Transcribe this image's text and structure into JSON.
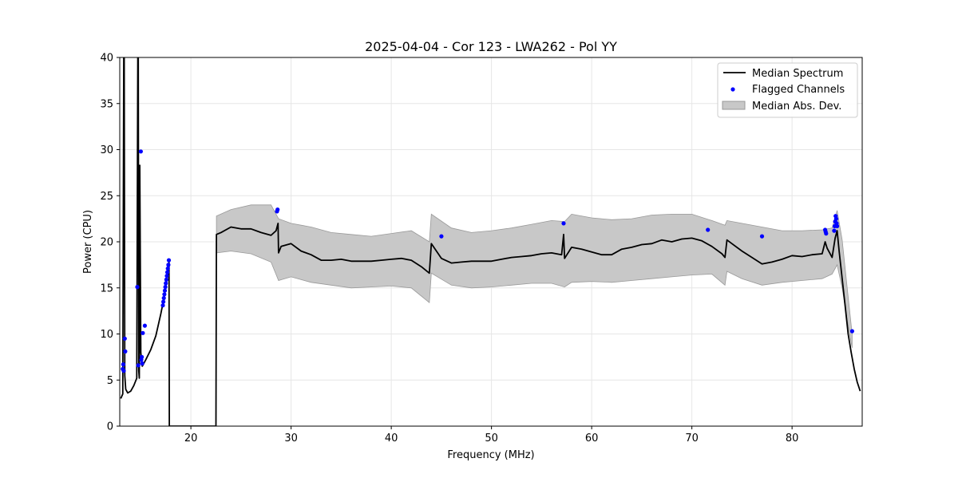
{
  "chart_data": {
    "type": "line",
    "title": "2025-04-04 - Cor 123 - LWA262 - Pol YY",
    "xlabel": "Frequency (MHz)",
    "ylabel": "Power (CPU)",
    "xlim": [
      12.9,
      87.0
    ],
    "ylim": [
      0,
      40
    ],
    "xticks": [
      20,
      30,
      40,
      50,
      60,
      70,
      80
    ],
    "yticks": [
      0,
      5,
      10,
      15,
      20,
      25,
      30,
      35,
      40
    ],
    "grid": true,
    "legend_position": "top-right",
    "colors": {
      "median": "#000000",
      "flagged": "#0000ff",
      "mad_fill": "#c8c8c8",
      "mad_edge": "#999999"
    },
    "series": [
      {
        "name": "Median Spectrum",
        "kind": "line",
        "x": [
          13.0,
          13.2,
          13.3,
          13.35,
          13.4,
          13.5,
          13.7,
          14.0,
          14.3,
          14.6,
          14.7,
          14.75,
          14.8,
          14.85,
          14.9,
          15.0,
          15.1,
          15.15,
          15.2,
          15.3,
          15.5,
          16.0,
          16.5,
          17.0,
          17.3,
          17.5,
          17.7,
          17.82,
          17.85,
          18.0,
          20.0,
          22.5,
          22.55,
          23.0,
          24.0,
          25.0,
          26.0,
          27.0,
          28.0,
          28.5,
          28.7,
          28.75,
          29.0,
          30.0,
          31.0,
          32.0,
          33.0,
          34.0,
          35.0,
          36.0,
          37.0,
          38.0,
          39.0,
          40.0,
          41.0,
          42.0,
          43.0,
          43.8,
          44.0,
          45.0,
          46.0,
          47.0,
          48.0,
          49.0,
          50.0,
          51.0,
          52.0,
          53.0,
          54.0,
          55.0,
          56.0,
          57.0,
          57.2,
          57.3,
          58.0,
          59.0,
          60.0,
          61.0,
          62.0,
          63.0,
          64.0,
          65.0,
          66.0,
          67.0,
          68.0,
          69.0,
          70.0,
          71.0,
          72.0,
          73.0,
          73.3,
          73.5,
          74.0,
          75.0,
          76.0,
          77.0,
          78.0,
          79.0,
          80.0,
          81.0,
          82.0,
          83.0,
          83.3,
          83.5,
          84.0,
          84.3,
          84.5,
          84.7,
          85.0,
          85.3,
          85.6,
          85.9,
          86.2,
          86.5,
          86.8
        ],
        "y": [
          3.0,
          3.5,
          40.0,
          40.0,
          5.5,
          4.0,
          3.6,
          3.8,
          4.4,
          5.2,
          40.0,
          40.0,
          6.0,
          5.2,
          28.3,
          8.0,
          6.8,
          6.5,
          6.6,
          6.8,
          7.2,
          8.3,
          9.8,
          12.2,
          13.8,
          15.2,
          16.5,
          17.8,
          0.0,
          0.0,
          0.0,
          0.0,
          20.8,
          21.0,
          21.6,
          21.4,
          21.4,
          21.0,
          20.7,
          21.2,
          22.0,
          18.8,
          19.5,
          19.8,
          19.0,
          18.6,
          18.0,
          18.0,
          18.1,
          17.9,
          17.9,
          17.9,
          18.0,
          18.1,
          18.2,
          18.0,
          17.3,
          16.6,
          19.8,
          18.2,
          17.7,
          17.8,
          17.9,
          17.9,
          17.9,
          18.1,
          18.3,
          18.4,
          18.5,
          18.7,
          18.8,
          18.6,
          20.8,
          18.2,
          19.4,
          19.2,
          18.9,
          18.6,
          18.6,
          19.2,
          19.4,
          19.7,
          19.8,
          20.2,
          20.0,
          20.3,
          20.4,
          20.1,
          19.5,
          18.7,
          18.3,
          20.2,
          19.8,
          19.0,
          18.3,
          17.6,
          17.8,
          18.1,
          18.5,
          18.4,
          18.6,
          18.7,
          20.0,
          19.3,
          18.3,
          20.4,
          21.2,
          19.0,
          16.0,
          13.0,
          10.0,
          8.0,
          6.2,
          4.8,
          3.8
        ]
      },
      {
        "name": "Median Abs. Dev.",
        "kind": "band",
        "x": [
          22.55,
          24.0,
          26.0,
          28.0,
          28.75,
          30.0,
          32.0,
          34.0,
          36.0,
          38.0,
          40.0,
          42.0,
          43.8,
          44.0,
          46.0,
          48.0,
          50.0,
          52.0,
          54.0,
          56.0,
          57.3,
          58.0,
          60.0,
          62.0,
          64.0,
          66.0,
          68.0,
          70.0,
          72.0,
          73.3,
          73.5,
          75.0,
          77.0,
          79.0,
          81.0,
          83.0,
          84.0,
          84.5,
          85.0,
          85.5,
          86.0
        ],
        "upper": [
          22.8,
          23.5,
          24.0,
          24.0,
          22.5,
          22.0,
          21.6,
          21.0,
          20.8,
          20.6,
          20.9,
          21.2,
          20.0,
          23.0,
          21.5,
          21.0,
          21.2,
          21.5,
          21.9,
          22.3,
          22.2,
          23.0,
          22.6,
          22.4,
          22.5,
          22.9,
          23.0,
          23.0,
          22.3,
          21.8,
          22.3,
          22.0,
          21.6,
          21.2,
          21.2,
          21.3,
          21.5,
          23.4,
          20.2,
          15.0,
          10.0
        ],
        "lower": [
          18.8,
          19.0,
          18.7,
          17.8,
          15.8,
          16.2,
          15.6,
          15.3,
          15.0,
          15.1,
          15.2,
          15.0,
          13.4,
          16.6,
          15.3,
          15.0,
          15.1,
          15.3,
          15.5,
          15.5,
          15.1,
          15.6,
          15.7,
          15.6,
          15.8,
          16.0,
          16.2,
          16.4,
          16.5,
          15.3,
          16.8,
          16.0,
          15.3,
          15.6,
          15.8,
          16.0,
          16.5,
          17.5,
          15.0,
          11.5,
          8.5
        ]
      },
      {
        "name": "Flagged Channels",
        "kind": "scatter",
        "x": [
          13.2,
          13.25,
          13.3,
          13.4,
          13.45,
          14.65,
          14.75,
          15.0,
          15.05,
          15.1,
          15.15,
          15.2,
          15.4,
          17.2,
          17.25,
          17.3,
          17.35,
          17.4,
          17.45,
          17.5,
          17.55,
          17.6,
          17.65,
          17.7,
          17.75,
          17.8,
          28.6,
          28.65,
          45.0,
          57.2,
          71.6,
          77.0,
          83.3,
          83.35,
          83.4,
          84.2,
          84.25,
          84.3,
          84.35,
          84.4,
          84.45,
          84.5,
          86.0
        ],
        "y": [
          6.2,
          6.7,
          6.0,
          9.5,
          8.1,
          15.1,
          6.6,
          29.8,
          7.2,
          7.5,
          6.8,
          10.1,
          10.9,
          13.1,
          13.5,
          13.9,
          14.3,
          14.7,
          15.1,
          15.5,
          15.9,
          16.3,
          16.7,
          17.1,
          17.5,
          18.0,
          23.3,
          23.5,
          20.6,
          22.0,
          21.3,
          20.6,
          21.3,
          21.1,
          20.9,
          21.2,
          21.7,
          22.2,
          22.8,
          22.5,
          22.0,
          21.7,
          10.3
        ]
      }
    ],
    "legend": [
      "Median Spectrum",
      "Flagged Channels",
      "Median Abs. Dev."
    ]
  }
}
